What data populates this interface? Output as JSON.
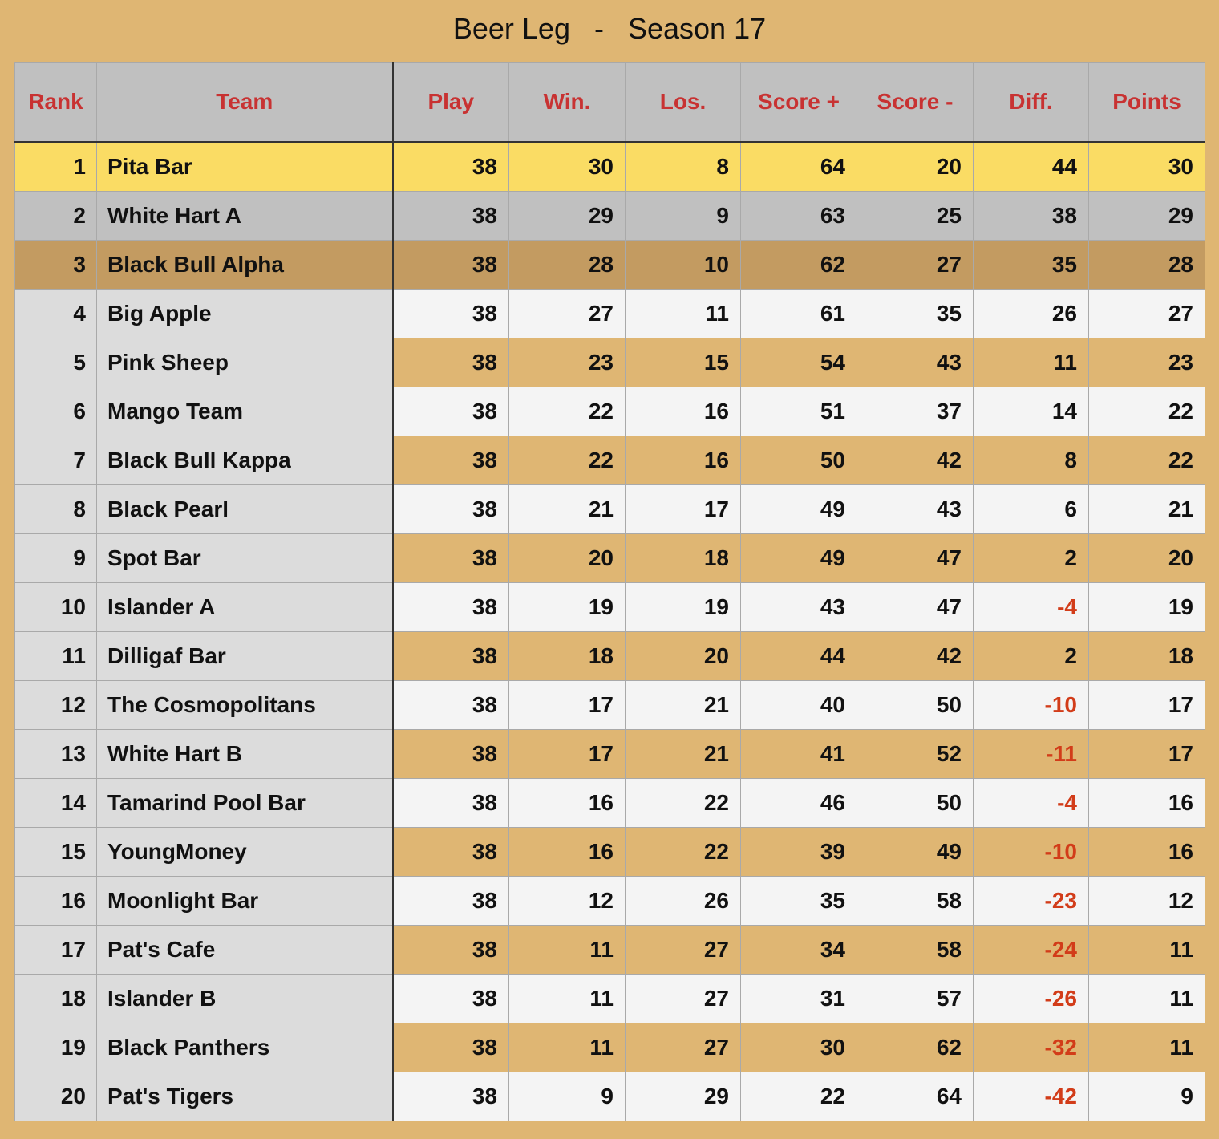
{
  "title": "Beer Leg   -   Season 17",
  "columns": [
    "Rank",
    "Team",
    "Play",
    "Win.",
    "Los.",
    "Score +",
    "Score -",
    "Diff.",
    "Points"
  ],
  "rows": [
    {
      "rank": "1",
      "team": "Pita Bar",
      "play": "38",
      "win": "30",
      "los": "8",
      "score_plus": "64",
      "score_minus": "20",
      "diff": "44",
      "points": "30"
    },
    {
      "rank": "2",
      "team": "White Hart A",
      "play": "38",
      "win": "29",
      "los": "9",
      "score_plus": "63",
      "score_minus": "25",
      "diff": "38",
      "points": "29"
    },
    {
      "rank": "3",
      "team": "Black Bull Alpha",
      "play": "38",
      "win": "28",
      "los": "10",
      "score_plus": "62",
      "score_minus": "27",
      "diff": "35",
      "points": "28"
    },
    {
      "rank": "4",
      "team": "Big Apple",
      "play": "38",
      "win": "27",
      "los": "11",
      "score_plus": "61",
      "score_minus": "35",
      "diff": "26",
      "points": "27"
    },
    {
      "rank": "5",
      "team": "Pink Sheep",
      "play": "38",
      "win": "23",
      "los": "15",
      "score_plus": "54",
      "score_minus": "43",
      "diff": "11",
      "points": "23"
    },
    {
      "rank": "6",
      "team": "Mango Team",
      "play": "38",
      "win": "22",
      "los": "16",
      "score_plus": "51",
      "score_minus": "37",
      "diff": "14",
      "points": "22"
    },
    {
      "rank": "7",
      "team": "Black Bull Kappa",
      "play": "38",
      "win": "22",
      "los": "16",
      "score_plus": "50",
      "score_minus": "42",
      "diff": "8",
      "points": "22"
    },
    {
      "rank": "8",
      "team": "Black Pearl",
      "play": "38",
      "win": "21",
      "los": "17",
      "score_plus": "49",
      "score_minus": "43",
      "diff": "6",
      "points": "21"
    },
    {
      "rank": "9",
      "team": "Spot Bar",
      "play": "38",
      "win": "20",
      "los": "18",
      "score_plus": "49",
      "score_minus": "47",
      "diff": "2",
      "points": "20"
    },
    {
      "rank": "10",
      "team": "Islander A",
      "play": "38",
      "win": "19",
      "los": "19",
      "score_plus": "43",
      "score_minus": "47",
      "diff": "-4",
      "points": "19"
    },
    {
      "rank": "11",
      "team": "Dilligaf Bar",
      "play": "38",
      "win": "18",
      "los": "20",
      "score_plus": "44",
      "score_minus": "42",
      "diff": "2",
      "points": "18"
    },
    {
      "rank": "12",
      "team": "The Cosmopolitans",
      "play": "38",
      "win": "17",
      "los": "21",
      "score_plus": "40",
      "score_minus": "50",
      "diff": "-10",
      "points": "17"
    },
    {
      "rank": "13",
      "team": "White Hart B",
      "play": "38",
      "win": "17",
      "los": "21",
      "score_plus": "41",
      "score_minus": "52",
      "diff": "-11",
      "points": "17"
    },
    {
      "rank": "14",
      "team": "Tamarind Pool Bar",
      "play": "38",
      "win": "16",
      "los": "22",
      "score_plus": "46",
      "score_minus": "50",
      "diff": "-4",
      "points": "16"
    },
    {
      "rank": "15",
      "team": "YoungMoney",
      "play": "38",
      "win": "16",
      "los": "22",
      "score_plus": "39",
      "score_minus": "49",
      "diff": "-10",
      "points": "16"
    },
    {
      "rank": "16",
      "team": "Moonlight Bar",
      "play": "38",
      "win": "12",
      "los": "26",
      "score_plus": "35",
      "score_minus": "58",
      "diff": "-23",
      "points": "12"
    },
    {
      "rank": "17",
      "team": "Pat's Cafe",
      "play": "38",
      "win": "11",
      "los": "27",
      "score_plus": "34",
      "score_minus": "58",
      "diff": "-24",
      "points": "11"
    },
    {
      "rank": "18",
      "team": "Islander B",
      "play": "38",
      "win": "11",
      "los": "27",
      "score_plus": "31",
      "score_minus": "57",
      "diff": "-26",
      "points": "11"
    },
    {
      "rank": "19",
      "team": "Black Panthers",
      "play": "38",
      "win": "11",
      "los": "27",
      "score_plus": "30",
      "score_minus": "62",
      "diff": "-32",
      "points": "11"
    },
    {
      "rank": "20",
      "team": "Pat's Tigers",
      "play": "38",
      "win": "9",
      "los": "29",
      "score_plus": "22",
      "score_minus": "64",
      "diff": "-42",
      "points": "9"
    }
  ],
  "colors": {
    "page_background": "#dfb673",
    "header_background": "#c0c0c0",
    "header_text": "#c83232",
    "first_place": "#fadc64",
    "second_place": "#c0c0c0",
    "third_place": "#c39b61",
    "band_gold": "#dfb673",
    "band_light": "#f4f4f4",
    "negative_diff": "#d23c19"
  }
}
